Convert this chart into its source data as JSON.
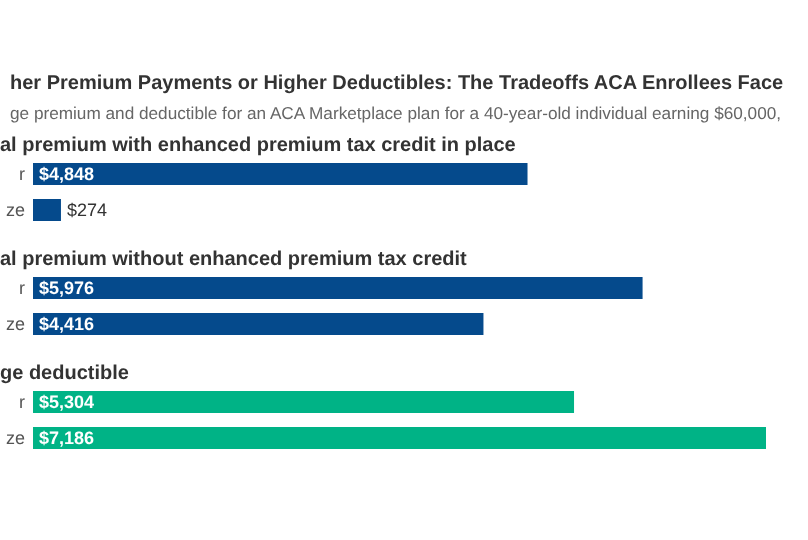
{
  "chart_data": {
    "type": "bar",
    "orientation": "horizontal",
    "title": "her Premium Payments or Higher Deductibles: The Tradeoffs ACA Enrollees Face",
    "subtitle": "ge premium and deductible for an ACA Marketplace plan for a 40-year-old individual earning $60,000,",
    "annotations": [
      "al premium with enhanced premium tax credit in place",
      "al premium without enhanced premium tax credit",
      "ge deductible"
    ],
    "categories": [
      "r",
      "ze",
      "r",
      "ze",
      "r",
      "ze"
    ],
    "values": [
      4848,
      274,
      5976,
      4416,
      5304,
      7186
    ],
    "value_labels": [
      "$4,848",
      "$274",
      "$5,976",
      "$4,416",
      "$5,304",
      "$7,186"
    ],
    "colors": [
      "#054a8c",
      "#054a8c",
      "#054a8c",
      "#054a8c",
      "#00b386",
      "#00b386"
    ]
  }
}
